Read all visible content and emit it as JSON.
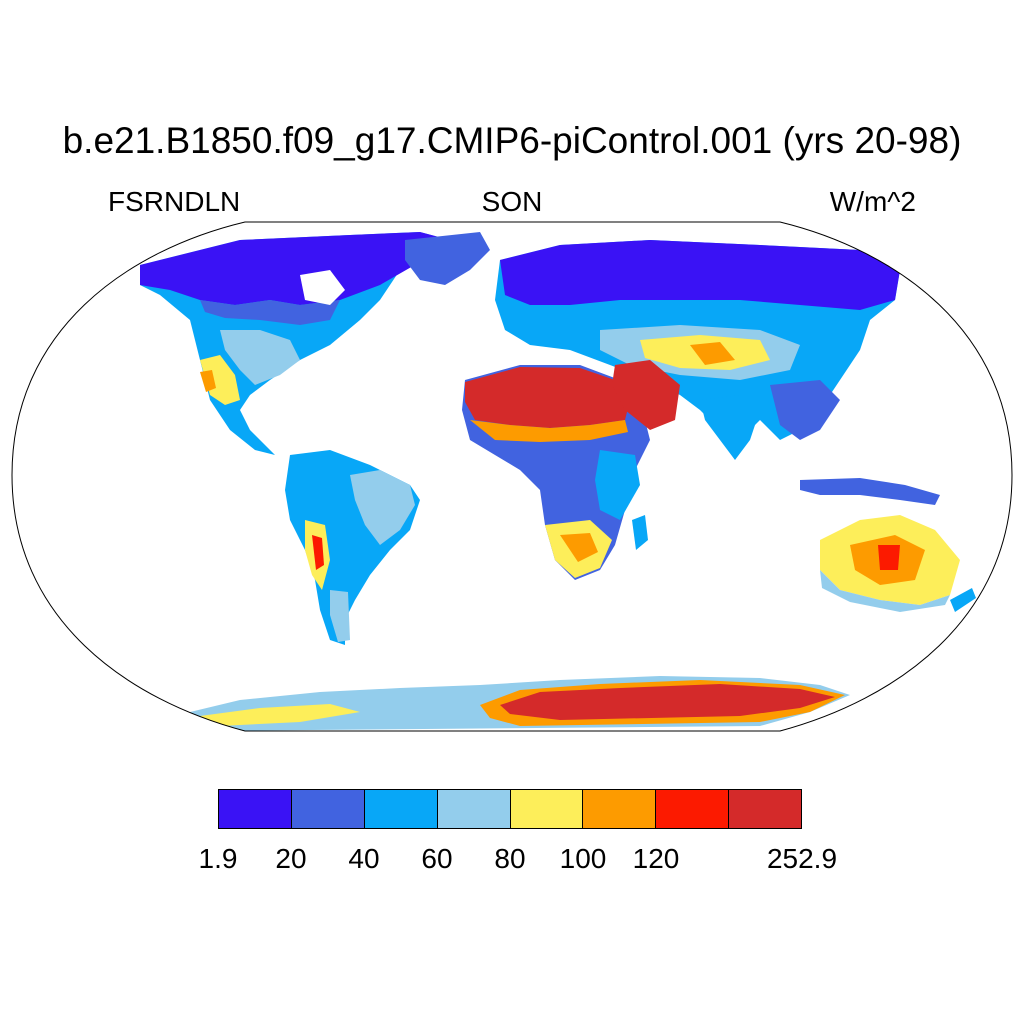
{
  "header": {
    "title": "b.e21.B1850.f09_g17.CMIP6-piControl.001 (yrs 20-98)",
    "left_label": "FSRNDLN",
    "center_label": "SON",
    "right_label": "W/m^2"
  },
  "colorbar": {
    "colors": [
      "#3a12f5",
      "#4163e0",
      "#08a7f7",
      "#93cdec",
      "#fdee5a",
      "#fd9b00",
      "#fc1a00",
      "#d42a2a"
    ],
    "labels": [
      "1.9",
      "20",
      "40",
      "60",
      "80",
      "100",
      "120",
      "252.9"
    ]
  }
}
